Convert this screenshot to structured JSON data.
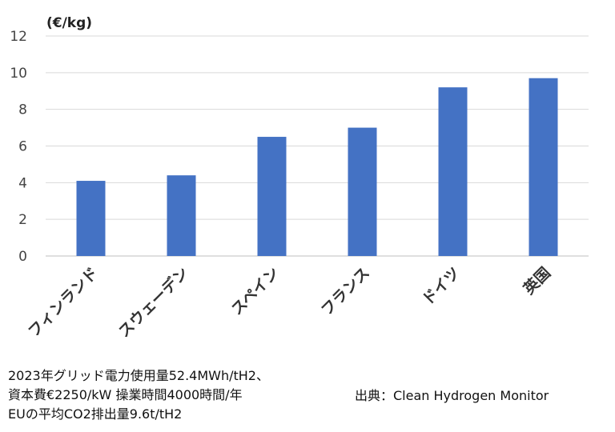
{
  "chart_data": {
    "type": "bar",
    "title": "",
    "ylabel": "(€/kg)",
    "xlabel": "",
    "categories": [
      "フィンランド",
      "スウェーデン",
      "スペイン",
      "フランス",
      "ドイツ",
      "英国"
    ],
    "values": [
      4.1,
      4.4,
      6.5,
      7.0,
      9.2,
      9.7
    ],
    "ylim": [
      0,
      12
    ],
    "yticks": [
      0,
      2,
      4,
      6,
      8,
      10,
      12
    ],
    "grid": true,
    "bar_color": "#4472C4",
    "legend": "none"
  },
  "notes": [
    "2023年グリッド電力使用量52.4MWh/tH2、",
    "資本費€2250/kW 操業時間4000時間/年",
    "EUの平均CO2排出量9.6t/tH2"
  ],
  "source": "出典：Clean Hydrogen Monitor"
}
